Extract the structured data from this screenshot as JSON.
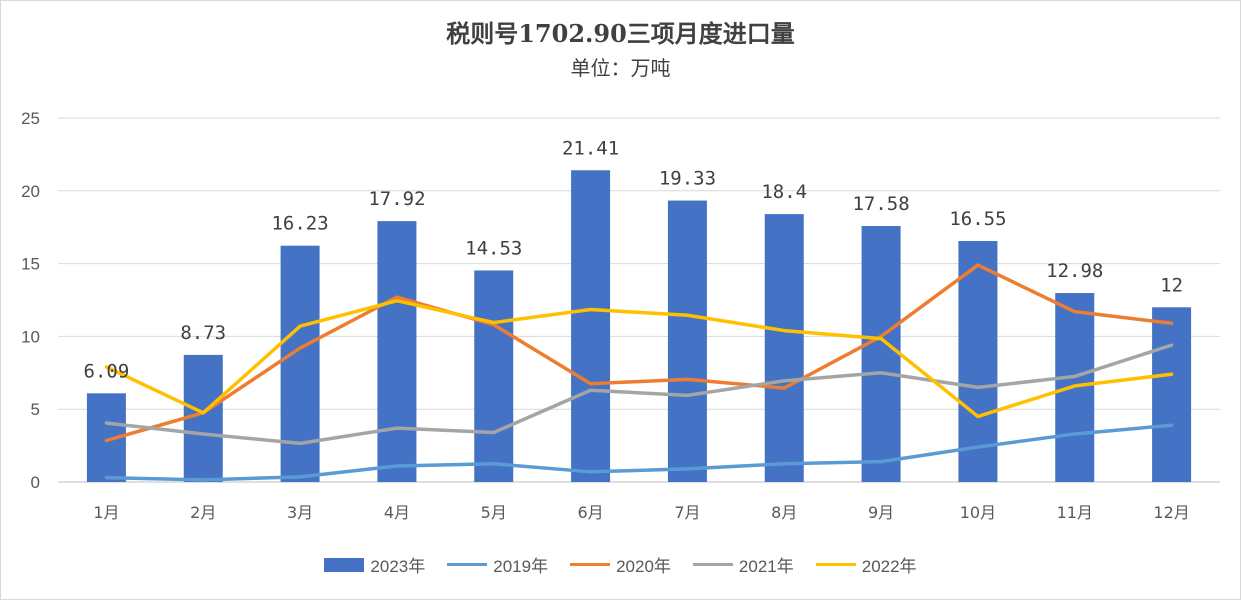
{
  "chart_data": {
    "type": "bar+line",
    "title": "税则号1702.90三项月度进口量",
    "subtitle": "单位：万吨",
    "categories": [
      "1月",
      "2月",
      "3月",
      "4月",
      "5月",
      "6月",
      "7月",
      "8月",
      "9月",
      "10月",
      "11月",
      "12月"
    ],
    "ylim": [
      0,
      25
    ],
    "yticks": [
      0,
      5,
      10,
      15,
      20,
      25
    ],
    "grid": true,
    "legend_position": "bottom",
    "series": [
      {
        "name": "2023年",
        "kind": "bar",
        "color": "#4472C4",
        "values": [
          6.09,
          8.73,
          16.23,
          17.92,
          14.53,
          21.41,
          19.33,
          18.4,
          17.58,
          16.55,
          12.98,
          12
        ],
        "labels": [
          "6.09",
          "8.73",
          "16.23",
          "17.92",
          "14.53",
          "21.41",
          "19.33",
          "18.4",
          "17.58",
          "16.55",
          "12.98",
          "12"
        ]
      },
      {
        "name": "2019年",
        "kind": "line",
        "color": "#5B9BD5",
        "values": [
          0.3,
          0.15,
          0.35,
          1.1,
          1.25,
          0.7,
          0.9,
          1.25,
          1.4,
          2.4,
          3.3,
          3.9
        ]
      },
      {
        "name": "2020年",
        "kind": "line",
        "color": "#ED7D31",
        "values": [
          2.85,
          4.75,
          9.2,
          12.7,
          10.8,
          6.75,
          7.05,
          6.45,
          10.0,
          14.9,
          11.7,
          10.9
        ]
      },
      {
        "name": "2021年",
        "kind": "line",
        "color": "#A5A5A5",
        "values": [
          4.05,
          3.3,
          2.65,
          3.7,
          3.4,
          6.3,
          5.95,
          6.95,
          7.5,
          6.5,
          7.25,
          9.4
        ]
      },
      {
        "name": "2022年",
        "kind": "line",
        "color": "#FFC000",
        "values": [
          7.9,
          4.75,
          10.7,
          12.45,
          10.95,
          11.85,
          11.45,
          10.4,
          9.85,
          4.5,
          6.6,
          7.4
        ]
      }
    ]
  }
}
